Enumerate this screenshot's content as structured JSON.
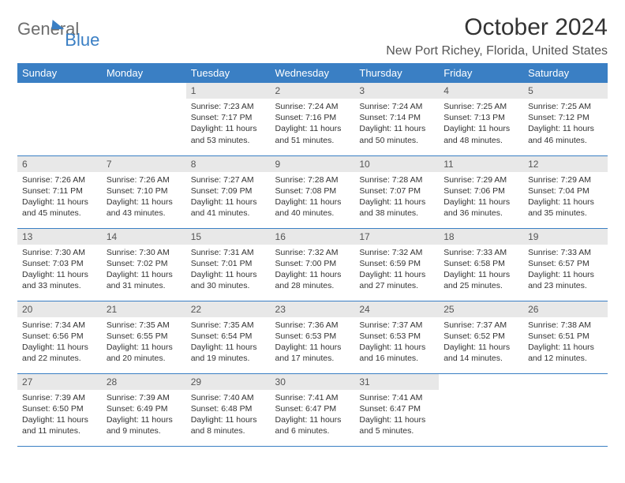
{
  "brand": {
    "part1": "General",
    "part2": "Blue"
  },
  "title": "October 2024",
  "location": "New Port Richey, Florida, United States",
  "colors": {
    "header_bg": "#3a7fc4",
    "header_text": "#ffffff",
    "daynum_bg": "#e8e8e8",
    "row_divider": "#3a7fc4",
    "text": "#333333",
    "brand_gray": "#6d6d6d",
    "brand_blue": "#3a7fc4",
    "background": "#ffffff"
  },
  "typography": {
    "title_fontsize": 30,
    "location_fontsize": 16,
    "th_fontsize": 13,
    "daynum_fontsize": 12,
    "cell_fontsize": 10.5
  },
  "weekdays": [
    "Sunday",
    "Monday",
    "Tuesday",
    "Wednesday",
    "Thursday",
    "Friday",
    "Saturday"
  ],
  "weeks": [
    [
      null,
      null,
      {
        "n": "1",
        "sunrise": "7:23 AM",
        "sunset": "7:17 PM",
        "daylight": "11 hours and 53 minutes."
      },
      {
        "n": "2",
        "sunrise": "7:24 AM",
        "sunset": "7:16 PM",
        "daylight": "11 hours and 51 minutes."
      },
      {
        "n": "3",
        "sunrise": "7:24 AM",
        "sunset": "7:14 PM",
        "daylight": "11 hours and 50 minutes."
      },
      {
        "n": "4",
        "sunrise": "7:25 AM",
        "sunset": "7:13 PM",
        "daylight": "11 hours and 48 minutes."
      },
      {
        "n": "5",
        "sunrise": "7:25 AM",
        "sunset": "7:12 PM",
        "daylight": "11 hours and 46 minutes."
      }
    ],
    [
      {
        "n": "6",
        "sunrise": "7:26 AM",
        "sunset": "7:11 PM",
        "daylight": "11 hours and 45 minutes."
      },
      {
        "n": "7",
        "sunrise": "7:26 AM",
        "sunset": "7:10 PM",
        "daylight": "11 hours and 43 minutes."
      },
      {
        "n": "8",
        "sunrise": "7:27 AM",
        "sunset": "7:09 PM",
        "daylight": "11 hours and 41 minutes."
      },
      {
        "n": "9",
        "sunrise": "7:28 AM",
        "sunset": "7:08 PM",
        "daylight": "11 hours and 40 minutes."
      },
      {
        "n": "10",
        "sunrise": "7:28 AM",
        "sunset": "7:07 PM",
        "daylight": "11 hours and 38 minutes."
      },
      {
        "n": "11",
        "sunrise": "7:29 AM",
        "sunset": "7:06 PM",
        "daylight": "11 hours and 36 minutes."
      },
      {
        "n": "12",
        "sunrise": "7:29 AM",
        "sunset": "7:04 PM",
        "daylight": "11 hours and 35 minutes."
      }
    ],
    [
      {
        "n": "13",
        "sunrise": "7:30 AM",
        "sunset": "7:03 PM",
        "daylight": "11 hours and 33 minutes."
      },
      {
        "n": "14",
        "sunrise": "7:30 AM",
        "sunset": "7:02 PM",
        "daylight": "11 hours and 31 minutes."
      },
      {
        "n": "15",
        "sunrise": "7:31 AM",
        "sunset": "7:01 PM",
        "daylight": "11 hours and 30 minutes."
      },
      {
        "n": "16",
        "sunrise": "7:32 AM",
        "sunset": "7:00 PM",
        "daylight": "11 hours and 28 minutes."
      },
      {
        "n": "17",
        "sunrise": "7:32 AM",
        "sunset": "6:59 PM",
        "daylight": "11 hours and 27 minutes."
      },
      {
        "n": "18",
        "sunrise": "7:33 AM",
        "sunset": "6:58 PM",
        "daylight": "11 hours and 25 minutes."
      },
      {
        "n": "19",
        "sunrise": "7:33 AM",
        "sunset": "6:57 PM",
        "daylight": "11 hours and 23 minutes."
      }
    ],
    [
      {
        "n": "20",
        "sunrise": "7:34 AM",
        "sunset": "6:56 PM",
        "daylight": "11 hours and 22 minutes."
      },
      {
        "n": "21",
        "sunrise": "7:35 AM",
        "sunset": "6:55 PM",
        "daylight": "11 hours and 20 minutes."
      },
      {
        "n": "22",
        "sunrise": "7:35 AM",
        "sunset": "6:54 PM",
        "daylight": "11 hours and 19 minutes."
      },
      {
        "n": "23",
        "sunrise": "7:36 AM",
        "sunset": "6:53 PM",
        "daylight": "11 hours and 17 minutes."
      },
      {
        "n": "24",
        "sunrise": "7:37 AM",
        "sunset": "6:53 PM",
        "daylight": "11 hours and 16 minutes."
      },
      {
        "n": "25",
        "sunrise": "7:37 AM",
        "sunset": "6:52 PM",
        "daylight": "11 hours and 14 minutes."
      },
      {
        "n": "26",
        "sunrise": "7:38 AM",
        "sunset": "6:51 PM",
        "daylight": "11 hours and 12 minutes."
      }
    ],
    [
      {
        "n": "27",
        "sunrise": "7:39 AM",
        "sunset": "6:50 PM",
        "daylight": "11 hours and 11 minutes."
      },
      {
        "n": "28",
        "sunrise": "7:39 AM",
        "sunset": "6:49 PM",
        "daylight": "11 hours and 9 minutes."
      },
      {
        "n": "29",
        "sunrise": "7:40 AM",
        "sunset": "6:48 PM",
        "daylight": "11 hours and 8 minutes."
      },
      {
        "n": "30",
        "sunrise": "7:41 AM",
        "sunset": "6:47 PM",
        "daylight": "11 hours and 6 minutes."
      },
      {
        "n": "31",
        "sunrise": "7:41 AM",
        "sunset": "6:47 PM",
        "daylight": "11 hours and 5 minutes."
      },
      null,
      null
    ]
  ],
  "labels": {
    "sunrise": "Sunrise:",
    "sunset": "Sunset:",
    "daylight": "Daylight:"
  }
}
